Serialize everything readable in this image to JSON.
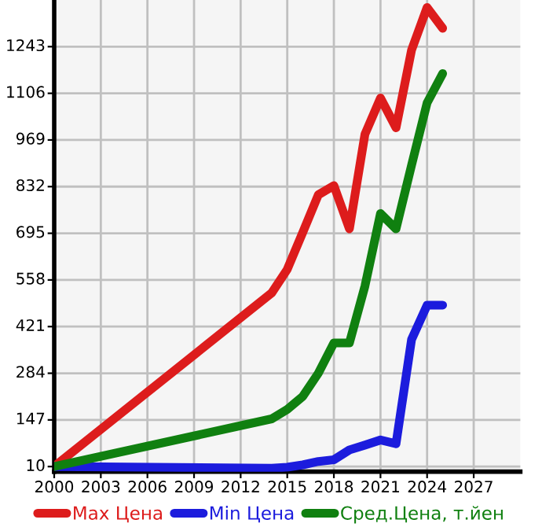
{
  "chart_data": {
    "type": "line",
    "x": [
      2000,
      2014,
      2015,
      2016,
      2017,
      2018,
      2019,
      2020,
      2021,
      2022,
      2023,
      2024,
      2025
    ],
    "series": [
      {
        "name": "Max Цена",
        "color": "#dd1c1c",
        "values": [
          10,
          520,
          589,
          698,
          808,
          835,
          708,
          986,
          1092,
          1005,
          1233,
          1358,
          1297
        ]
      },
      {
        "name": "Min Цена",
        "color": "#1c1cdd",
        "values": [
          10,
          5,
          8,
          15,
          25,
          30,
          59,
          73,
          88,
          77,
          383,
          484,
          484
        ]
      },
      {
        "name": "Сред.Цена, т.йен",
        "color": "#108010",
        "values": [
          10,
          150,
          178,
          216,
          284,
          373,
          373,
          540,
          753,
          708,
          895,
          1078,
          1164
        ]
      }
    ],
    "xlim": [
      2000,
      2030
    ],
    "xticks": [
      2000,
      2003,
      2006,
      2009,
      2012,
      2015,
      2018,
      2021,
      2024,
      2027
    ],
    "ylim": [
      -5,
      1380
    ],
    "yticks": [
      10,
      147,
      284,
      421,
      558,
      695,
      832,
      969,
      1106,
      1243
    ],
    "grid": true,
    "legend": "bottom",
    "marker": "none",
    "line_style": "solid"
  }
}
